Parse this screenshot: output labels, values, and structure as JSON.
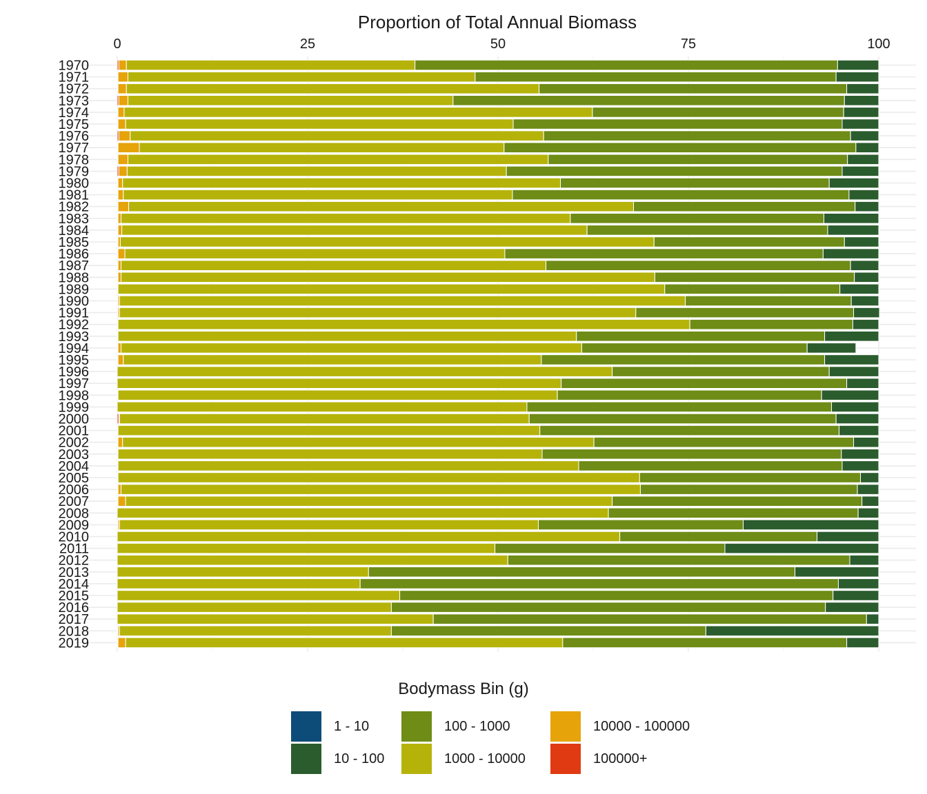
{
  "chart_data": {
    "type": "bar",
    "orientation": "horizontal",
    "stacked": true,
    "title": "Proportion of Total Annual Biomass",
    "xlim": [
      0,
      100
    ],
    "x_ticks": [
      "0",
      "25",
      "50",
      "75",
      "100"
    ],
    "x_axis_position": "top",
    "grid": true,
    "categories": [
      "1970",
      "1971",
      "1972",
      "1973",
      "1974",
      "1975",
      "1976",
      "1977",
      "1978",
      "1979",
      "1980",
      "1981",
      "1982",
      "1983",
      "1984",
      "1985",
      "1986",
      "1987",
      "1988",
      "1989",
      "1990",
      "1991",
      "1992",
      "1993",
      "1994",
      "1995",
      "1996",
      "1997",
      "1998",
      "1999",
      "2000",
      "2001",
      "2002",
      "2003",
      "2004",
      "2005",
      "2006",
      "2007",
      "2008",
      "2009",
      "2010",
      "2011",
      "2012",
      "2013",
      "2014",
      "2015",
      "2016",
      "2017",
      "2018",
      "2019"
    ],
    "stack_order_left_to_right": [
      "100000+",
      "10000 - 100000",
      "1000 - 10000",
      "100 - 1000",
      "10 - 100",
      "1 - 10"
    ],
    "series": [
      {
        "name": "100000+",
        "color": "#e03a12",
        "values": [
          0.2,
          0.1,
          0.1,
          0.2,
          0.1,
          0.1,
          0.2,
          0.1,
          0.1,
          0.2,
          0.1,
          0.1,
          0.1,
          0.1,
          0.1,
          0.1,
          0.1,
          0.1,
          0.1,
          0.1,
          0.1,
          0.1,
          0.1,
          0,
          0.1,
          0.1,
          0,
          0,
          0,
          0,
          0.2,
          0,
          0.1,
          0,
          0,
          0,
          0.1,
          0.1,
          0,
          0.1,
          0,
          0,
          0,
          0,
          0,
          0,
          0,
          0,
          0.1,
          0.1
        ]
      },
      {
        "name": "10000 - 100000",
        "color": "#e6a30a",
        "values": [
          1.0,
          1.3,
          1.1,
          1.2,
          0.8,
          1.0,
          1.5,
          2.8,
          1.3,
          1.1,
          0.6,
          0.7,
          1.4,
          0.4,
          0.5,
          0.3,
          0.9,
          0.4,
          0.4,
          0,
          0.2,
          0.2,
          0,
          0.1,
          0.4,
          0.7,
          0,
          0,
          0.1,
          0,
          0.1,
          0.1,
          0.6,
          0.1,
          0.1,
          0.1,
          0.4,
          1.0,
          0,
          0.2,
          0,
          0,
          0,
          0,
          0,
          0,
          0,
          0,
          0.2,
          1.0
        ]
      },
      {
        "name": "1000 - 10000",
        "color": "#b5b30a",
        "values": [
          37.9,
          45.6,
          54.2,
          42.7,
          61.5,
          50.9,
          54.3,
          47.9,
          55.2,
          49.8,
          57.5,
          51.1,
          66.3,
          59.0,
          61.1,
          70.1,
          49.9,
          55.8,
          70.1,
          71.8,
          74.3,
          67.8,
          75.1,
          60.2,
          60.5,
          54.9,
          65.0,
          58.3,
          57.7,
          53.8,
          53.8,
          55.4,
          61.9,
          55.7,
          60.5,
          68.5,
          68.2,
          63.9,
          64.5,
          55.0,
          66.0,
          49.6,
          51.3,
          33.0,
          31.9,
          37.1,
          36.0,
          41.5,
          35.7,
          57.4
        ]
      },
      {
        "name": "100 - 1000",
        "color": "#6e8c16",
        "values": [
          55.5,
          47.4,
          40.4,
          51.4,
          33.0,
          43.2,
          40.3,
          46.2,
          39.3,
          44.1,
          35.3,
          44.2,
          29.1,
          33.3,
          31.6,
          25.0,
          41.8,
          40.0,
          26.2,
          23.0,
          21.8,
          28.6,
          21.4,
          32.6,
          29.6,
          37.2,
          28.5,
          37.5,
          34.7,
          40.0,
          40.3,
          39.3,
          34.1,
          39.3,
          34.6,
          29.0,
          28.5,
          32.8,
          32.8,
          26.9,
          25.9,
          30.2,
          44.9,
          56.0,
          62.8,
          56.9,
          57.0,
          56.9,
          41.3,
          37.3
        ]
      },
      {
        "name": "10 - 100",
        "color": "#2b5c2e",
        "values": [
          5.4,
          5.6,
          4.2,
          4.5,
          4.6,
          4.8,
          3.7,
          3.0,
          4.1,
          4.8,
          6.5,
          3.9,
          3.1,
          7.2,
          6.7,
          4.5,
          7.3,
          3.7,
          3.2,
          5.1,
          3.6,
          3.4,
          3.4,
          7.1,
          6.4,
          7.1,
          6.5,
          4.2,
          7.5,
          6.2,
          5.6,
          5.2,
          3.3,
          4.9,
          4.8,
          2.4,
          2.8,
          2.2,
          2.7,
          17.8,
          8.1,
          20.2,
          3.8,
          11.0,
          5.3,
          6.0,
          7.0,
          1.6,
          22.7,
          4.2
        ]
      },
      {
        "name": "1 - 10",
        "color": "#0d4c78",
        "values": [
          0,
          0,
          0,
          0,
          0,
          0,
          0,
          0,
          0,
          0,
          0,
          0,
          0,
          0,
          0,
          0,
          0,
          0,
          0,
          0,
          0,
          0,
          0,
          0,
          0,
          0,
          0,
          0,
          0,
          0,
          0,
          0,
          0,
          0,
          0,
          0,
          0,
          0,
          0,
          0,
          0,
          0,
          0,
          0,
          0,
          0,
          0,
          0,
          0,
          0
        ]
      }
    ]
  },
  "legend": {
    "title": "Bodymass Bin (g)",
    "items": [
      {
        "label": "1 - 10",
        "color": "#0d4c78"
      },
      {
        "label": "10 - 100",
        "color": "#2b5c2e"
      },
      {
        "label": "100 - 1000",
        "color": "#6e8c16"
      },
      {
        "label": "1000 - 10000",
        "color": "#b5b30a"
      },
      {
        "label": "10000 - 100000",
        "color": "#e6a30a"
      },
      {
        "label": "100000+",
        "color": "#e03a12"
      }
    ]
  }
}
